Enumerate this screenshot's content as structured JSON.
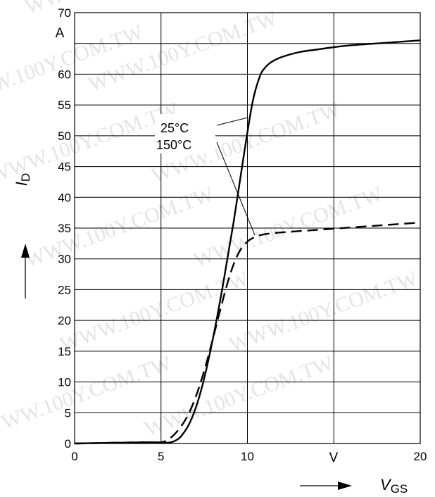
{
  "chart_data": {
    "type": "line",
    "title": "",
    "xlabel": "V",
    "xlabel_sub": "GS",
    "ylabel": "I",
    "ylabel_sub": "D",
    "x_unit": "V",
    "y_unit": "A",
    "xlim": [
      0,
      20
    ],
    "ylim": [
      0,
      70
    ],
    "x_ticks": [
      "0",
      "5",
      "10",
      "20"
    ],
    "y_ticks": [
      "0",
      "5",
      "10",
      "15",
      "20",
      "25",
      "30",
      "35",
      "40",
      "45",
      "50",
      "55",
      "60",
      "70"
    ],
    "grid": true,
    "watermark": "WWW.100Y.COM.TW",
    "series": [
      {
        "name": "25°C",
        "color": "#000000",
        "dash": "solid",
        "x": [
          0,
          2,
          4,
          4.8,
          5.2,
          5.7,
          6.2,
          6.8,
          7.4,
          8.0,
          8.6,
          9.2,
          9.8,
          10.3,
          10.7,
          11.0,
          11.4,
          12.0,
          13.0,
          14.0,
          15.0,
          16.0,
          17.0,
          18.0,
          19.0,
          20.0
        ],
        "y": [
          0,
          0.1,
          0.2,
          0.2,
          0.1,
          0.3,
          1.3,
          4.2,
          9.5,
          17.0,
          26.0,
          36.0,
          47.0,
          55.5,
          59.5,
          61.0,
          62.0,
          62.8,
          63.6,
          64.0,
          64.4,
          64.7,
          64.9,
          65.1,
          65.3,
          65.5
        ]
      },
      {
        "name": "150°C",
        "color": "#000000",
        "dash": "dashed",
        "x": [
          0,
          2,
          4,
          5.0,
          5.5,
          6.0,
          6.5,
          7.0,
          7.5,
          8.0,
          8.5,
          9.0,
          9.5,
          10.0,
          10.5,
          11.0,
          12.0,
          14.0,
          16.0,
          18.0,
          20.0
        ],
        "y": [
          0,
          0.1,
          0.2,
          0.2,
          0.8,
          2.2,
          4.3,
          7.5,
          11.8,
          17.0,
          22.5,
          27.5,
          31.0,
          32.8,
          33.6,
          34.0,
          34.3,
          34.7,
          35.1,
          35.5,
          35.9
        ]
      }
    ],
    "legend": [
      "25°C",
      "150°C"
    ]
  }
}
